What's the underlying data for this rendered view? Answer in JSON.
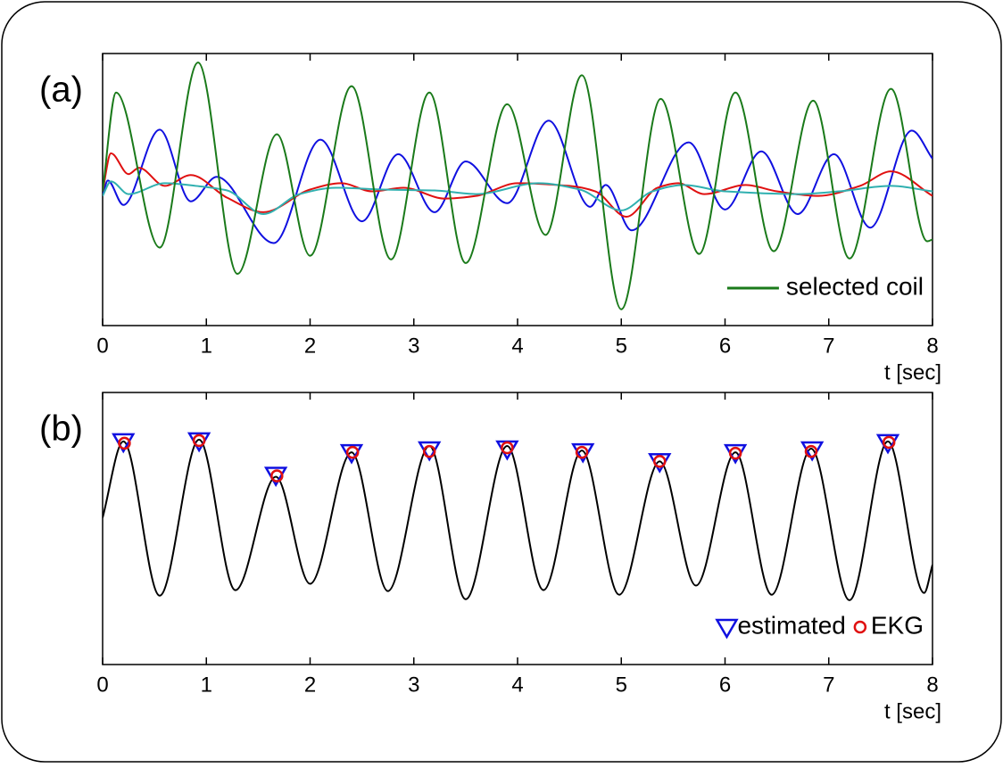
{
  "chart_data": [
    {
      "type": "line",
      "label": "(a)",
      "xlabel": "t [sec]",
      "xlim": [
        0,
        8
      ],
      "xticks": [
        0,
        1,
        2,
        3,
        4,
        5,
        6,
        7,
        8
      ],
      "ylim": [
        -1.5,
        1.5
      ],
      "legend": "lower right",
      "series": [
        {
          "color": "#1010e0",
          "x": [
            0,
            0.05,
            0.2,
            0.55,
            0.85,
            1.1,
            1.65,
            2.1,
            2.5,
            2.85,
            3.2,
            3.5,
            3.9,
            4.3,
            4.7,
            4.85,
            5.1,
            5.65,
            6.0,
            6.35,
            6.7,
            7.05,
            7.4,
            7.8,
            8
          ],
          "values": [
            -0.07,
            0.1,
            -0.17,
            0.66,
            -0.13,
            0.14,
            -0.59,
            0.55,
            -0.35,
            0.39,
            -0.25,
            0.31,
            -0.15,
            0.76,
            -0.19,
            0.05,
            -0.45,
            0.52,
            -0.22,
            0.42,
            -0.27,
            0.39,
            -0.42,
            0.65,
            0.34
          ]
        },
        {
          "color": "#e01010",
          "x": [
            0,
            0.08,
            0.25,
            0.35,
            0.6,
            0.85,
            1.2,
            1.55,
            2.0,
            2.3,
            2.6,
            2.9,
            3.3,
            3.6,
            4.0,
            4.5,
            4.75,
            5.05,
            5.35,
            5.55,
            5.8,
            6.2,
            6.5,
            6.9,
            7.3,
            7.6,
            8
          ],
          "values": [
            -0.02,
            0.4,
            0.17,
            0.24,
            0.04,
            0.16,
            -0.09,
            -0.25,
            0,
            0.07,
            -0.02,
            0.02,
            -0.1,
            -0.07,
            0.07,
            0.04,
            -0.02,
            -0.3,
            0.02,
            0.07,
            -0.05,
            0.05,
            -0.02,
            -0.07,
            0.04,
            0.2,
            -0.07
          ]
        },
        {
          "color": "#30b0b0",
          "x": [
            0,
            0.08,
            0.25,
            0.6,
            0.9,
            1.2,
            1.55,
            1.9,
            2.25,
            2.7,
            3.2,
            3.6,
            4.2,
            4.6,
            5.0,
            5.3,
            5.6,
            6.0,
            6.7,
            7.1,
            7.6,
            8
          ],
          "values": [
            -0.07,
            0.09,
            -0.05,
            0.07,
            0.04,
            -0.01,
            -0.27,
            -0.05,
            0.02,
            0,
            -0.01,
            -0.05,
            0.07,
            0,
            -0.23,
            -0.02,
            0.05,
            -0.02,
            -0.05,
            -0.02,
            0.04,
            -0.02
          ]
        },
        {
          "name": "selected coil",
          "color": "#1a7a1a",
          "x": [
            0,
            0.13,
            0.55,
            0.92,
            1.3,
            1.68,
            2.0,
            2.4,
            2.78,
            3.15,
            3.5,
            3.9,
            4.27,
            4.62,
            5.0,
            5.38,
            5.75,
            6.1,
            6.47,
            6.85,
            7.2,
            7.6,
            7.95,
            8
          ],
          "values": [
            -0.02,
            1.07,
            -0.64,
            1.4,
            -0.93,
            0.61,
            -0.73,
            1.14,
            -0.77,
            1.07,
            -0.81,
            0.94,
            -0.5,
            1.26,
            -1.32,
            1.0,
            -0.71,
            1.07,
            -0.68,
            0.98,
            -0.76,
            1.11,
            -0.57,
            -0.55
          ]
        }
      ]
    },
    {
      "type": "line",
      "label": "(b)",
      "xlabel": "t [sec]",
      "xlim": [
        0,
        8
      ],
      "xticks": [
        0,
        1,
        2,
        3,
        4,
        5,
        6,
        7,
        8
      ],
      "ylim": [
        -1.5,
        1.5
      ],
      "legend": "lower right",
      "series": [
        {
          "color": "#000000",
          "x": [
            0,
            0.2,
            0.55,
            0.93,
            1.28,
            1.67,
            2.0,
            2.4,
            2.75,
            3.15,
            3.5,
            3.9,
            4.25,
            4.62,
            4.98,
            5.37,
            5.72,
            6.1,
            6.45,
            6.83,
            7.2,
            7.57,
            7.92,
            8
          ],
          "values": [
            0.12,
            0.96,
            -0.74,
            0.98,
            -0.68,
            0.57,
            -0.61,
            0.84,
            -0.69,
            0.91,
            -0.78,
            0.91,
            -0.68,
            0.86,
            -0.73,
            0.74,
            -0.63,
            0.84,
            -0.73,
            0.88,
            -0.79,
            0.96,
            -0.71,
            -0.4
          ]
        },
        {
          "name": "estimated",
          "color": "#1010e0",
          "marker": "triangle",
          "x": [
            0.2,
            0.93,
            1.67,
            2.4,
            3.15,
            3.9,
            4.63,
            5.37,
            6.1,
            6.84,
            7.57
          ],
          "values": [
            0.96,
            0.97,
            0.59,
            0.84,
            0.87,
            0.88,
            0.85,
            0.74,
            0.84,
            0.87,
            0.95
          ]
        },
        {
          "name": "EKG",
          "color": "#e01010",
          "marker": "circle",
          "x": [
            0.21,
            0.93,
            1.68,
            2.41,
            3.15,
            3.9,
            4.62,
            5.37,
            6.1,
            6.83,
            7.58
          ],
          "values": [
            0.94,
            0.97,
            0.58,
            0.84,
            0.85,
            0.89,
            0.84,
            0.74,
            0.83,
            0.85,
            0.95
          ]
        }
      ]
    }
  ]
}
